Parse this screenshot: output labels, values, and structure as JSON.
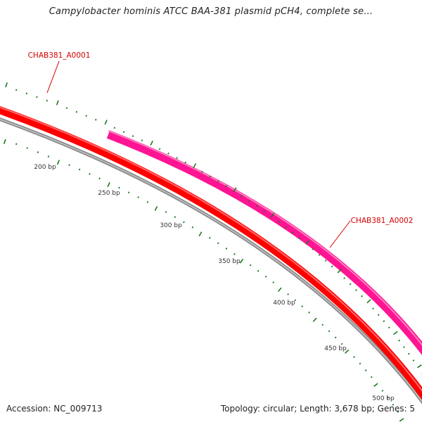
{
  "title": "Campylobacter hominis ATCC BAA-381 plasmid pCH4, complete se...",
  "footer": {
    "accession": "Accession: NC_009713",
    "summary": "Topology: circular; Length: 3,678 bp; Genes: 5"
  },
  "genes": [
    {
      "label": "CHAB381_A0001",
      "color": "#ff0000",
      "track": "inner"
    },
    {
      "label": "CHAB381_A0002",
      "color": "#ff1493",
      "track": "outer"
    }
  ],
  "ruler": {
    "labels": [
      "200 bp",
      "250 bp",
      "300 bp",
      "350 bp",
      "400 bp",
      "450 bp",
      "500 bp"
    ]
  },
  "colors": {
    "backbone": "#808080",
    "tick": "#1e7a1e",
    "label": "#d40000"
  }
}
